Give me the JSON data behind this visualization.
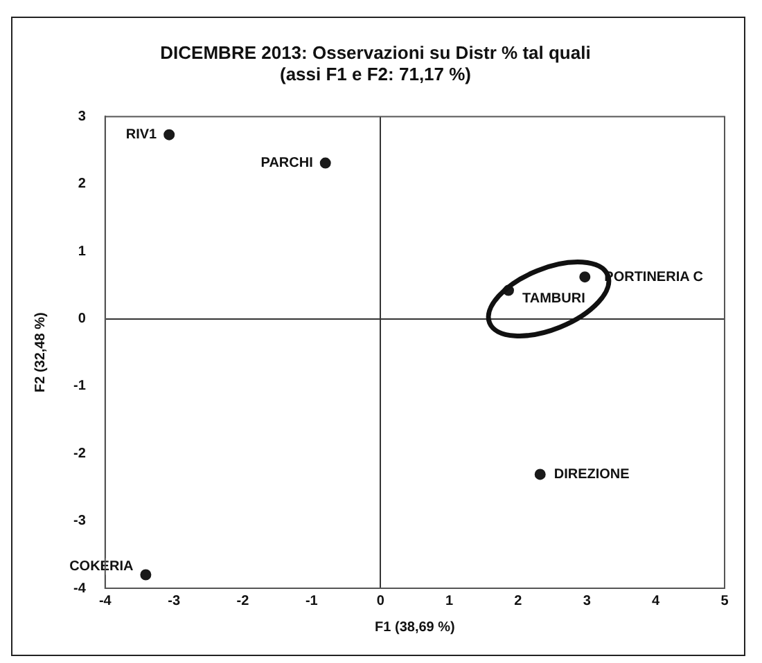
{
  "chart_data": {
    "type": "scatter",
    "title": [
      "DICEMBRE 2013: Osservazioni su Distr % tal quali",
      "(assi F1 e F2: 71,17 %)"
    ],
    "xlabel": "F1 (38,69 %)",
    "ylabel": "F2 (32,48 %)",
    "x": [
      -3.07,
      -0.8,
      1.86,
      2.97,
      2.32,
      -3.41
    ],
    "values": [
      2.73,
      2.31,
      0.42,
      0.62,
      -2.31,
      -3.8
    ],
    "color": "#1a1a1a",
    "marker": "circle",
    "xlim": [
      -4,
      5
    ],
    "xticks": [
      -4,
      -3,
      -2,
      -1,
      0,
      1,
      2,
      3,
      4,
      5
    ],
    "ylim": [
      -4,
      3
    ],
    "yticks": [
      -4,
      -3,
      -2,
      -1,
      0,
      1,
      2,
      3
    ],
    "annotations": [
      {
        "text": "RIV1",
        "x": -3.07,
        "y": 2.73
      },
      {
        "text": "PARCHI",
        "x": -0.8,
        "y": 2.31
      },
      {
        "text": "TAMBURI",
        "x": 1.86,
        "y": 0.42
      },
      {
        "text": "PORTINERIA C",
        "x": 2.97,
        "y": 0.62
      },
      {
        "text": "DIREZIONE",
        "x": 2.32,
        "y": -2.31
      },
      {
        "text": "COKERIA",
        "x": -3.41,
        "y": -3.8
      }
    ]
  }
}
